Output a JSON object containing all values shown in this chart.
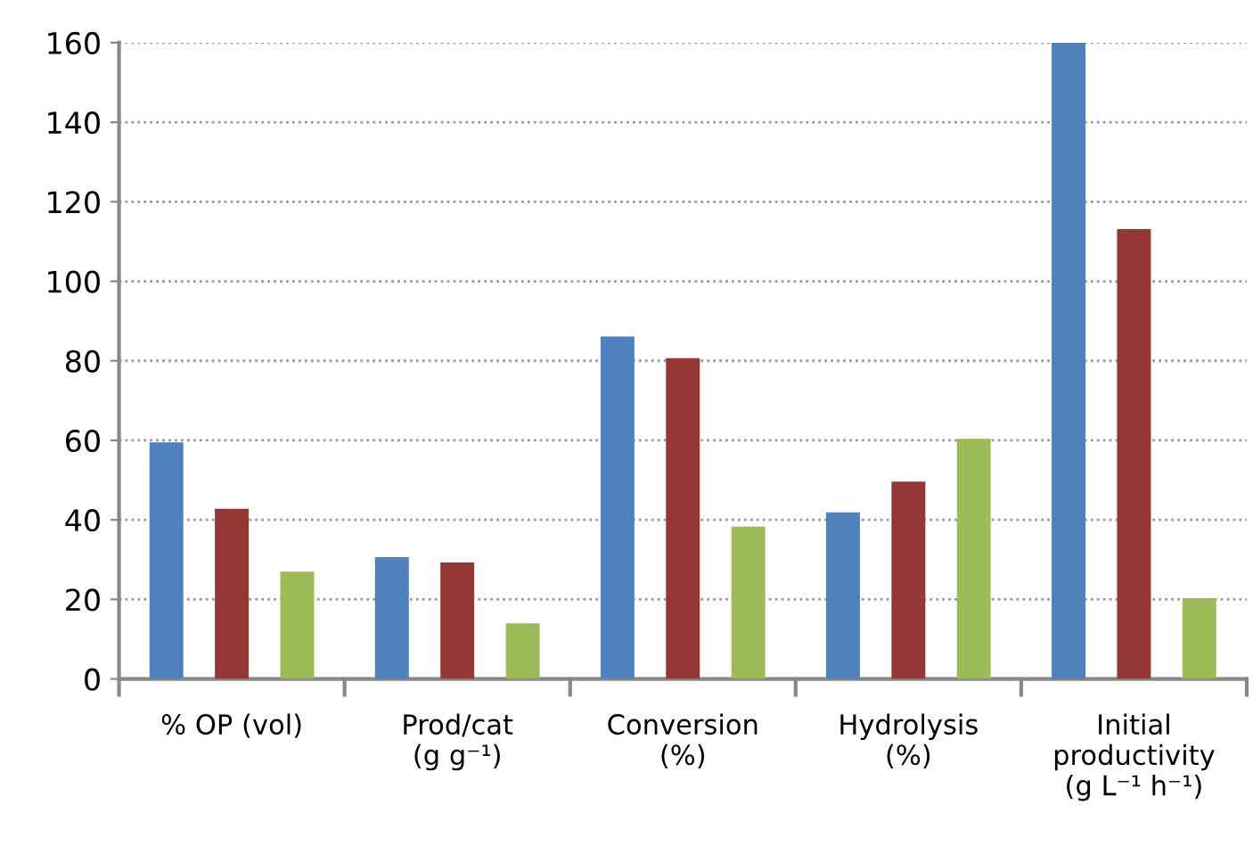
{
  "chart_data": {
    "type": "bar",
    "categories": [
      "% OP (vol)",
      "Prod/cat\n(g g⁻¹)",
      "Conversion\n(%)",
      "Hydrolysis\n(%)",
      "Initial\nproductivity\n(g L⁻¹ h⁻¹)"
    ],
    "series": [
      {
        "color": "#4f81bd",
        "values": [
          59.5,
          30.6,
          86.1,
          41.9,
          160
        ]
      },
      {
        "color": "#953735",
        "values": [
          42.8,
          29.3,
          80.7,
          49.6,
          113.1
        ]
      },
      {
        "color": "#9bbb59",
        "values": [
          27.0,
          14.0,
          38.3,
          60.4,
          20.3
        ]
      }
    ],
    "ylim": [
      0,
      160
    ],
    "yticks": [
      0,
      20,
      40,
      60,
      80,
      100,
      120,
      140,
      160
    ],
    "grid": "y",
    "legend": false
  }
}
